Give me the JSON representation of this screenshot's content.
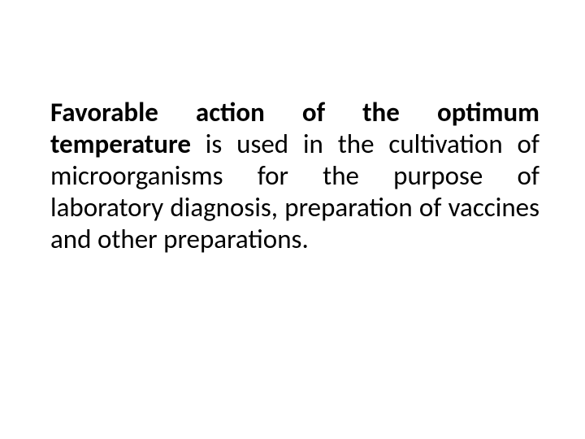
{
  "slide": {
    "paragraph": {
      "bold_lead": "Favorable action of the optimum temperature",
      "rest": " is used in the cultivation of microorganisms for the purpose of laboratory diagnosis, preparation of vaccines and other preparations."
    },
    "style": {
      "background_color": "#ffffff",
      "text_color": "#000000",
      "font_family": "Calibri",
      "font_size_pt": 25,
      "bold_weight": 700,
      "align": "justify"
    }
  }
}
